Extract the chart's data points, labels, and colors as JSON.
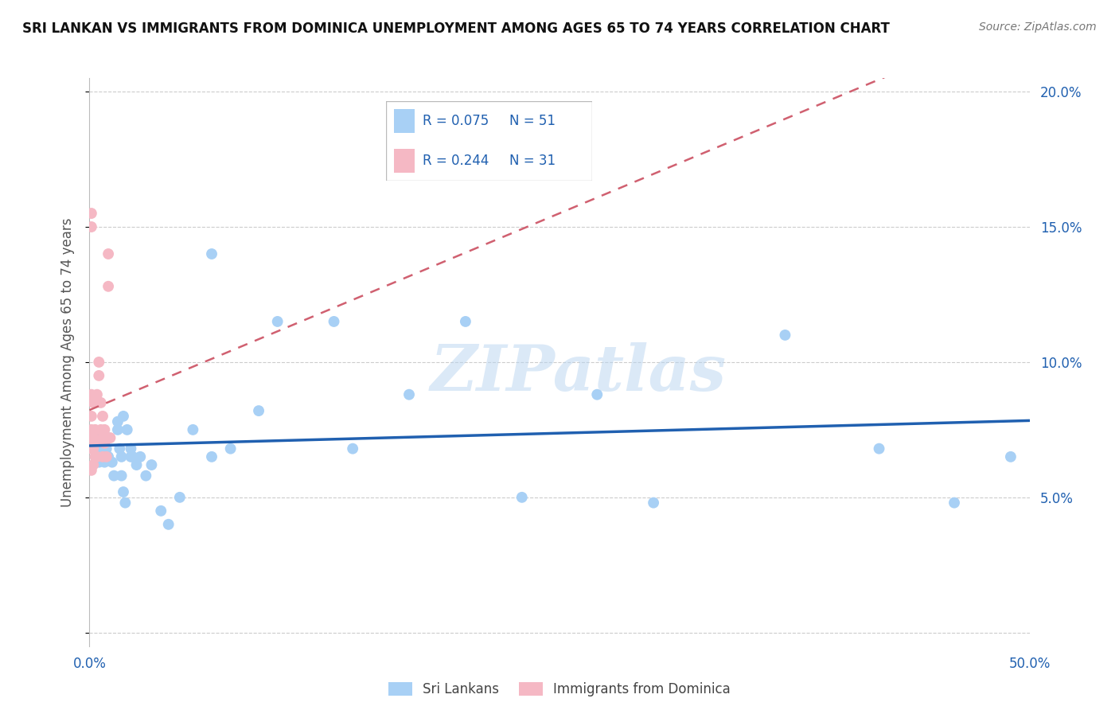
{
  "title": "SRI LANKAN VS IMMIGRANTS FROM DOMINICA UNEMPLOYMENT AMONG AGES 65 TO 74 YEARS CORRELATION CHART",
  "source": "Source: ZipAtlas.com",
  "ylabel": "Unemployment Among Ages 65 to 74 years",
  "xlim": [
    0.0,
    0.5
  ],
  "ylim": [
    -0.005,
    0.205
  ],
  "xticks": [
    0.0,
    0.1,
    0.2,
    0.3,
    0.4,
    0.5
  ],
  "yticks": [
    0.0,
    0.05,
    0.1,
    0.15,
    0.2
  ],
  "xticklabels": [
    "0.0%",
    "",
    "",
    "",
    "",
    "50.0%"
  ],
  "yticklabels": [
    "",
    "5.0%",
    "10.0%",
    "15.0%",
    "20.0%"
  ],
  "sri_lankans_R": 0.075,
  "sri_lankans_N": 51,
  "dominica_R": 0.244,
  "dominica_N": 31,
  "sri_lankans_color": "#a8d0f5",
  "dominica_color": "#f5b8c4",
  "trendline_sri_color": "#2060b0",
  "trendline_dom_color": "#d06070",
  "watermark": "ZIPatlas",
  "sri_lankans_x": [
    0.001,
    0.002,
    0.003,
    0.003,
    0.004,
    0.005,
    0.005,
    0.006,
    0.007,
    0.008,
    0.009,
    0.01,
    0.01,
    0.012,
    0.013,
    0.015,
    0.016,
    0.017,
    0.017,
    0.018,
    0.019,
    0.02,
    0.022,
    0.023,
    0.025,
    0.015,
    0.018,
    0.022,
    0.027,
    0.03,
    0.033,
    0.038,
    0.042,
    0.048,
    0.055,
    0.065,
    0.065,
    0.075,
    0.09,
    0.1,
    0.13,
    0.14,
    0.17,
    0.2,
    0.23,
    0.27,
    0.3,
    0.37,
    0.42,
    0.46,
    0.49
  ],
  "sri_lankans_y": [
    0.072,
    0.068,
    0.072,
    0.07,
    0.068,
    0.072,
    0.063,
    0.068,
    0.072,
    0.063,
    0.068,
    0.072,
    0.065,
    0.063,
    0.058,
    0.075,
    0.068,
    0.065,
    0.058,
    0.052,
    0.048,
    0.075,
    0.065,
    0.065,
    0.062,
    0.078,
    0.08,
    0.068,
    0.065,
    0.058,
    0.062,
    0.045,
    0.04,
    0.05,
    0.075,
    0.14,
    0.065,
    0.068,
    0.082,
    0.115,
    0.115,
    0.068,
    0.088,
    0.115,
    0.05,
    0.088,
    0.048,
    0.11,
    0.068,
    0.048,
    0.065
  ],
  "dominica_x": [
    0.001,
    0.001,
    0.001,
    0.001,
    0.001,
    0.001,
    0.001,
    0.001,
    0.002,
    0.002,
    0.002,
    0.002,
    0.003,
    0.003,
    0.003,
    0.004,
    0.004,
    0.005,
    0.005,
    0.006,
    0.006,
    0.007,
    0.007,
    0.007,
    0.008,
    0.008,
    0.009,
    0.009,
    0.01,
    0.01,
    0.011
  ],
  "dominica_y": [
    0.06,
    0.068,
    0.072,
    0.075,
    0.08,
    0.088,
    0.15,
    0.155,
    0.062,
    0.068,
    0.072,
    0.085,
    0.065,
    0.07,
    0.075,
    0.065,
    0.088,
    0.095,
    0.1,
    0.075,
    0.085,
    0.065,
    0.072,
    0.08,
    0.07,
    0.075,
    0.065,
    0.072,
    0.128,
    0.14,
    0.072
  ]
}
